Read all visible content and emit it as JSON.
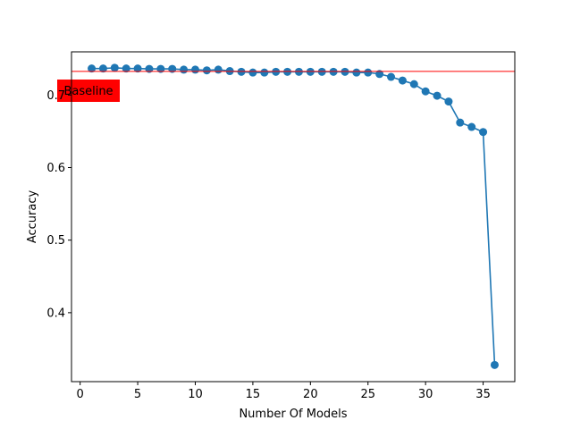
{
  "chart_data": {
    "type": "line",
    "title": "",
    "xlabel": "Number Of Models",
    "ylabel": "Accuracy",
    "xlim": [
      -0.75,
      37.75
    ],
    "ylim": [
      0.305,
      0.7595
    ],
    "x_ticks": [
      0,
      5,
      10,
      15,
      20,
      25,
      30,
      35
    ],
    "y_ticks": [
      0.4,
      0.5,
      0.6,
      0.7
    ],
    "y_tick_labels": [
      "0.4",
      "0.5",
      "0.6",
      "0.7"
    ],
    "grid": false,
    "legend": "none",
    "series": [
      {
        "color": "#1f77b4",
        "marker": "circle",
        "x": [
          1,
          2,
          3,
          4,
          5,
          6,
          7,
          8,
          9,
          10,
          11,
          12,
          13,
          14,
          15,
          16,
          17,
          18,
          19,
          20,
          21,
          22,
          23,
          24,
          25,
          26,
          27,
          28,
          29,
          30,
          31,
          32,
          33,
          34,
          35,
          36
        ],
        "values": [
          0.7365,
          0.7365,
          0.7375,
          0.7365,
          0.7365,
          0.736,
          0.736,
          0.736,
          0.735,
          0.735,
          0.734,
          0.735,
          0.733,
          0.732,
          0.731,
          0.731,
          0.732,
          0.732,
          0.732,
          0.732,
          0.732,
          0.732,
          0.732,
          0.731,
          0.731,
          0.729,
          0.725,
          0.72,
          0.715,
          0.705,
          0.699,
          0.691,
          0.662,
          0.656,
          0.649,
          0.328
        ]
      }
    ],
    "baseline": {
      "value": 0.7325,
      "color": "#ff0000",
      "label": "Baseline",
      "label_bg": "#ff0000"
    }
  }
}
